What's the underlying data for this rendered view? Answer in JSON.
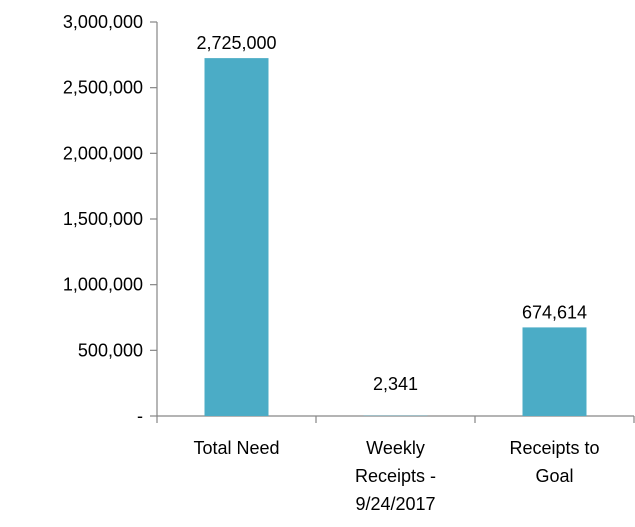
{
  "chart_data": {
    "type": "bar",
    "categories": [
      [
        "Total Need"
      ],
      [
        "Weekly",
        "Receipts -",
        "9/24/2017"
      ],
      [
        "Receipts to",
        "Goal"
      ]
    ],
    "values": [
      2725000,
      2341,
      674614
    ],
    "data_labels": [
      "2,725,000",
      "2,341",
      "674,614"
    ],
    "y_ticks": [
      0,
      500000,
      1000000,
      1500000,
      2000000,
      2500000,
      3000000
    ],
    "y_tick_labels": [
      "-",
      "500,000",
      "1,000,000",
      "1,500,000",
      "2,000,000",
      "2,500,000",
      "3,000,000"
    ],
    "ylim": [
      0,
      3000000
    ],
    "title": "",
    "xlabel": "",
    "ylabel": "",
    "grid": false,
    "legend": "none",
    "colors": {
      "bar": "#4BACC6",
      "axis": "#868686"
    }
  }
}
